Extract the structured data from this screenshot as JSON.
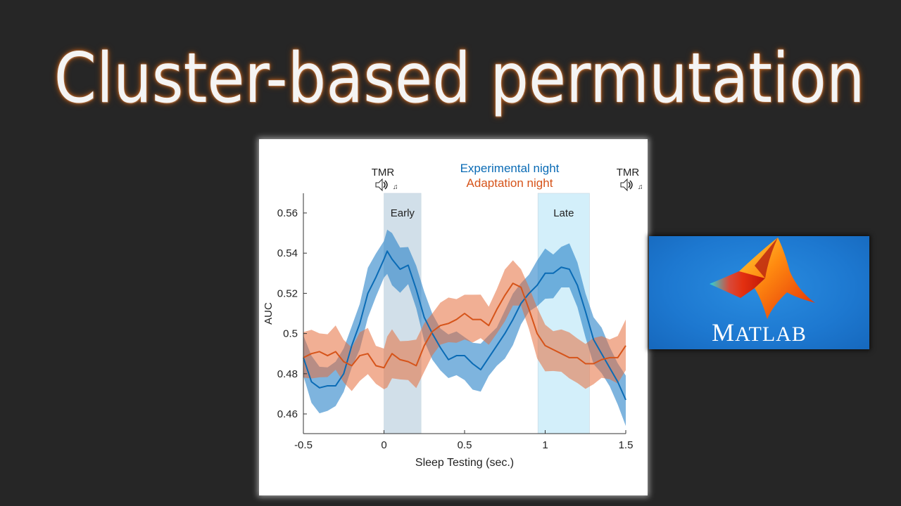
{
  "slide": {
    "title": "Cluster-based permutation",
    "background_color": "#262626"
  },
  "logo": {
    "name": "MATLAB",
    "first_letter": "M",
    "rest": "ATLAB",
    "background_color": "#1d78d0"
  },
  "figure": {
    "legend": {
      "experimental": "Experimental night",
      "adaptation": "Adaptation night"
    },
    "markers": [
      {
        "label": "TMR",
        "x": 0,
        "icon": "speaker-sound-icon"
      },
      {
        "label": "TMR",
        "x": 1.5,
        "icon": "speaker-sound-icon"
      }
    ],
    "windows": [
      {
        "label": "Early",
        "x_start": 0.0,
        "x_end": 0.23,
        "color": "#d1dfe9"
      },
      {
        "label": "Late",
        "x_start": 0.955,
        "x_end": 1.275,
        "color": "#d3effa"
      }
    ],
    "xlabel": "Sleep Testing (sec.)",
    "ylabel": "AUC",
    "xticks": [
      "-0.5",
      "0",
      "0.5",
      "1",
      "1.5"
    ],
    "yticks": [
      "0.56",
      "0.54",
      "0.52",
      "0.5",
      "0.48",
      "0.46"
    ]
  },
  "chart_data": {
    "type": "line",
    "title": "",
    "xlabel": "Sleep Testing (sec.)",
    "ylabel": "AUC",
    "xlim": [
      -0.5,
      1.5
    ],
    "ylim": [
      0.45,
      0.57
    ],
    "x_ticks": [
      -0.5,
      0,
      0.5,
      1,
      1.5
    ],
    "y_ticks": [
      0.46,
      0.48,
      0.5,
      0.52,
      0.54,
      0.56
    ],
    "grid": false,
    "legend_position": "top-center",
    "shaded_windows": [
      {
        "label": "Early",
        "x": [
          0.0,
          0.23
        ]
      },
      {
        "label": "Late",
        "x": [
          0.955,
          1.275
        ]
      }
    ],
    "annotations": [
      "TMR at 0",
      "TMR at 1.5"
    ],
    "x": [
      -0.5,
      -0.45,
      -0.4,
      -0.35,
      -0.3,
      -0.25,
      -0.2,
      -0.15,
      -0.1,
      -0.05,
      0.0,
      0.02,
      0.05,
      0.1,
      0.15,
      0.2,
      0.25,
      0.3,
      0.35,
      0.4,
      0.45,
      0.5,
      0.55,
      0.6,
      0.65,
      0.7,
      0.75,
      0.8,
      0.85,
      0.9,
      0.95,
      1.0,
      1.05,
      1.1,
      1.15,
      1.2,
      1.25,
      1.3,
      1.35,
      1.4,
      1.45,
      1.5
    ],
    "series": [
      {
        "name": "Experimental night",
        "color": "#0a6bb5",
        "band_halfwidth": 0.011,
        "values": [
          0.488,
          0.476,
          0.473,
          0.474,
          0.474,
          0.48,
          0.494,
          0.505,
          0.52,
          0.528,
          0.537,
          0.541,
          0.537,
          0.532,
          0.534,
          0.522,
          0.508,
          0.5,
          0.493,
          0.487,
          0.489,
          0.489,
          0.485,
          0.482,
          0.488,
          0.494,
          0.5,
          0.507,
          0.515,
          0.52,
          0.524,
          0.53,
          0.53,
          0.533,
          0.532,
          0.524,
          0.511,
          0.497,
          0.49,
          0.483,
          0.476,
          0.467
        ]
      },
      {
        "name": "Adaptation night",
        "color": "#d6541a",
        "band_halfwidth": 0.011,
        "values": [
          0.488,
          0.49,
          0.491,
          0.489,
          0.491,
          0.486,
          0.484,
          0.489,
          0.49,
          0.484,
          0.483,
          0.486,
          0.49,
          0.487,
          0.486,
          0.484,
          0.494,
          0.501,
          0.504,
          0.505,
          0.507,
          0.51,
          0.507,
          0.507,
          0.504,
          0.512,
          0.519,
          0.525,
          0.523,
          0.512,
          0.5,
          0.494,
          0.492,
          0.49,
          0.488,
          0.488,
          0.485,
          0.485,
          0.487,
          0.488,
          0.488,
          0.494
        ]
      }
    ]
  }
}
